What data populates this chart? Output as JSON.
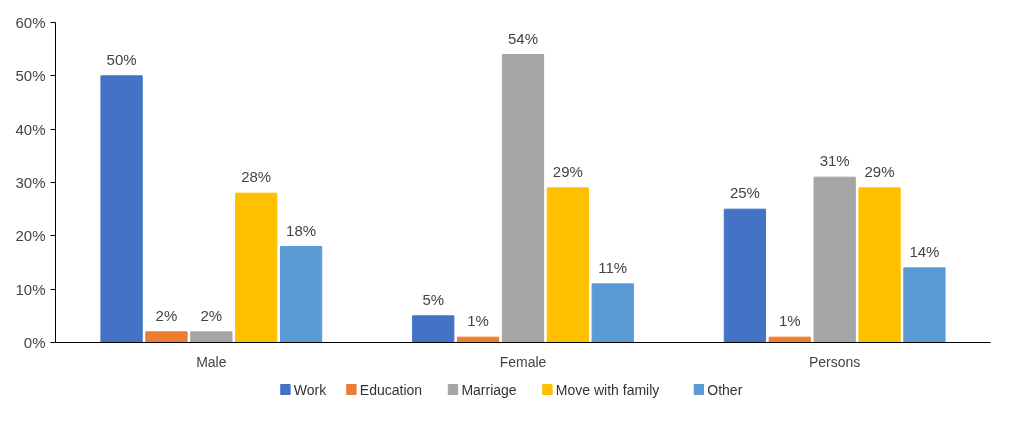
{
  "chart_data": {
    "type": "bar",
    "categories": [
      "Male",
      "Female",
      "Persons"
    ],
    "series": [
      {
        "name": "Work",
        "color": "#4472c4",
        "values": [
          50,
          5,
          25
        ],
        "value_labels": [
          "50%",
          "5%",
          "25%"
        ]
      },
      {
        "name": "Education",
        "color": "#ed7d31",
        "values": [
          2,
          1,
          1
        ],
        "value_labels": [
          "2%",
          "1%",
          "1%"
        ]
      },
      {
        "name": "Marriage",
        "color": "#a5a5a5",
        "values": [
          2,
          54,
          31
        ],
        "value_labels": [
          "2%",
          "54%",
          "31%"
        ]
      },
      {
        "name": "Move with family",
        "color": "#ffc000",
        "values": [
          28,
          29,
          29
        ],
        "value_labels": [
          "28%",
          "29%",
          "29%"
        ]
      },
      {
        "name": "Other",
        "color": "#5b9bd5",
        "values": [
          18,
          11,
          14
        ],
        "value_labels": [
          "18%",
          "11%",
          "14%"
        ]
      }
    ],
    "ylim": [
      0,
      60
    ],
    "yticks": [
      {
        "value": 0,
        "label": "0%"
      },
      {
        "value": 10,
        "label": "10%"
      },
      {
        "value": 20,
        "label": "20%"
      },
      {
        "value": 30,
        "label": "30%"
      },
      {
        "value": 40,
        "label": "40%"
      },
      {
        "value": 50,
        "label": "50%"
      },
      {
        "value": 60,
        "label": "60%"
      }
    ],
    "grid": false,
    "legend": "bottom"
  }
}
